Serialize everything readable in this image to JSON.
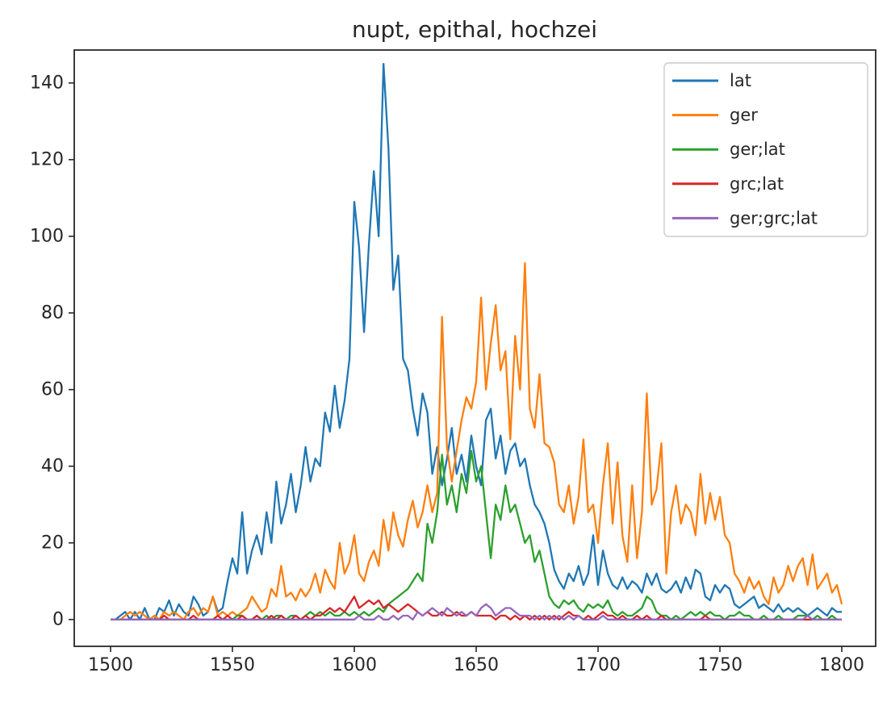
{
  "chart_data": {
    "type": "line",
    "title": "nupt, epithal, hochzei",
    "xlabel": "",
    "ylabel": "",
    "x_start": 1500,
    "x_step": 2,
    "xlim": [
      1485.1,
      1813.9
    ],
    "ylim": [
      -7,
      148.6
    ],
    "x_ticks": [
      1500,
      1550,
      1600,
      1650,
      1700,
      1750,
      1800
    ],
    "y_ticks": [
      0,
      20,
      40,
      60,
      80,
      100,
      120,
      140
    ],
    "grid": false,
    "legend_position": "upper right",
    "axis_color": "#262626",
    "legend_border_color": "#cccccc",
    "series": [
      {
        "name": "lat",
        "color": "#1f77b4",
        "values": [
          0,
          0,
          1,
          2,
          0,
          2,
          0,
          3,
          0,
          0,
          3,
          2,
          5,
          1,
          4,
          2,
          1,
          6,
          4,
          1,
          2,
          6,
          2,
          3,
          10,
          16,
          12,
          28,
          12,
          18,
          22,
          17,
          28,
          20,
          36,
          25,
          30,
          38,
          28,
          35,
          45,
          36,
          42,
          40,
          54,
          49,
          61,
          50,
          57,
          68,
          109,
          97,
          75,
          98,
          117,
          100,
          145,
          123,
          86,
          95,
          68,
          65,
          55,
          48,
          59,
          54,
          38,
          45,
          35,
          42,
          50,
          38,
          43,
          36,
          48,
          40,
          35,
          52,
          55,
          42,
          48,
          38,
          44,
          46,
          40,
          42,
          35,
          30,
          28,
          25,
          20,
          13,
          10,
          8,
          12,
          10,
          14,
          9,
          12,
          22,
          9,
          18,
          12,
          9,
          8,
          11,
          8,
          10,
          9,
          7,
          12,
          9,
          12,
          8,
          7,
          8,
          10,
          7,
          11,
          8,
          13,
          12,
          6,
          5,
          9,
          7,
          9,
          8,
          4,
          3,
          4,
          5,
          6,
          3,
          4,
          3,
          2,
          4,
          2,
          3,
          2,
          3,
          2,
          1,
          2,
          3,
          2,
          1,
          3,
          2,
          2
        ]
      },
      {
        "name": "ger",
        "color": "#ff7f0e",
        "values": [
          0,
          0,
          0,
          1,
          2,
          1,
          2,
          1,
          0,
          1,
          0,
          2,
          1,
          2,
          1,
          0,
          2,
          3,
          1,
          3,
          2,
          6,
          1,
          2,
          1,
          2,
          1,
          2,
          3,
          6,
          4,
          2,
          3,
          8,
          6,
          14,
          6,
          7,
          5,
          8,
          6,
          8,
          12,
          7,
          13,
          10,
          8,
          20,
          12,
          15,
          22,
          12,
          10,
          15,
          18,
          14,
          26,
          18,
          28,
          22,
          19,
          26,
          31,
          24,
          28,
          35,
          28,
          33,
          79,
          45,
          36,
          44,
          52,
          58,
          55,
          62,
          84,
          60,
          72,
          82,
          65,
          70,
          47,
          74,
          60,
          93,
          55,
          50,
          64,
          46,
          45,
          41,
          30,
          28,
          35,
          25,
          32,
          47,
          28,
          30,
          20,
          35,
          46,
          25,
          41,
          22,
          15,
          35,
          16,
          28,
          59,
          30,
          34,
          46,
          12,
          28,
          35,
          25,
          30,
          28,
          22,
          38,
          25,
          33,
          26,
          32,
          22,
          20,
          12,
          10,
          7,
          11,
          8,
          10,
          6,
          4,
          11,
          7,
          9,
          14,
          10,
          14,
          16,
          9,
          17,
          8,
          10,
          12,
          7,
          9,
          4
        ]
      },
      {
        "name": "ger;lat",
        "color": "#2ca02c",
        "values": [
          0,
          0,
          0,
          0,
          0,
          0,
          0,
          0,
          0,
          0,
          0,
          0,
          0,
          0,
          0,
          0,
          0,
          0,
          0,
          0,
          0,
          0,
          0,
          0,
          0,
          0,
          1,
          1,
          0,
          0,
          1,
          0,
          1,
          0,
          1,
          1,
          0,
          1,
          1,
          0,
          1,
          2,
          1,
          2,
          1,
          2,
          1,
          1,
          2,
          1,
          2,
          1,
          2,
          1,
          2,
          3,
          2,
          4,
          5,
          6,
          7,
          8,
          10,
          12,
          10,
          25,
          20,
          28,
          43,
          30,
          35,
          28,
          38,
          33,
          44,
          36,
          40,
          28,
          16,
          30,
          26,
          35,
          28,
          30,
          25,
          20,
          22,
          15,
          18,
          12,
          6,
          4,
          3,
          5,
          4,
          5,
          3,
          2,
          4,
          3,
          4,
          3,
          5,
          2,
          1,
          2,
          1,
          1,
          2,
          3,
          6,
          5,
          2,
          1,
          1,
          0,
          1,
          0,
          1,
          2,
          1,
          2,
          1,
          2,
          1,
          1,
          0,
          1,
          1,
          2,
          1,
          1,
          0,
          0,
          1,
          0,
          0,
          1,
          0,
          0,
          0,
          1,
          1,
          1,
          0,
          1,
          0,
          0,
          1,
          0,
          0
        ]
      },
      {
        "name": "grc;lat",
        "color": "#d62728",
        "values": [
          0,
          0,
          0,
          0,
          0,
          0,
          0,
          0,
          0,
          0,
          0,
          1,
          0,
          0,
          0,
          0,
          0,
          1,
          0,
          0,
          0,
          0,
          1,
          0,
          1,
          0,
          0,
          1,
          0,
          0,
          1,
          0,
          0,
          1,
          0,
          1,
          0,
          0,
          1,
          0,
          1,
          0,
          1,
          1,
          2,
          3,
          2,
          3,
          2,
          4,
          6,
          3,
          4,
          5,
          4,
          5,
          3,
          4,
          3,
          2,
          3,
          4,
          3,
          2,
          1,
          2,
          1,
          1,
          2,
          1,
          1,
          2,
          1,
          1,
          2,
          1,
          1,
          1,
          1,
          0,
          1,
          1,
          0,
          1,
          0,
          1,
          0,
          1,
          0,
          1,
          0,
          1,
          0,
          1,
          2,
          1,
          1,
          0,
          1,
          0,
          1,
          2,
          1,
          1,
          0,
          1,
          0,
          0,
          1,
          0,
          1,
          0,
          0,
          1,
          0,
          0,
          0,
          0,
          0,
          0,
          0,
          0,
          1,
          0,
          0,
          0,
          0,
          0,
          0,
          0,
          0,
          0,
          0,
          0,
          0,
          0,
          0,
          0,
          0,
          0,
          0,
          0,
          0,
          0,
          0,
          0,
          0,
          0,
          0,
          0,
          0
        ]
      },
      {
        "name": "ger;grc;lat",
        "color": "#9467bd",
        "values": [
          0,
          0,
          0,
          0,
          0,
          0,
          0,
          0,
          0,
          0,
          0,
          0,
          0,
          0,
          0,
          0,
          0,
          0,
          0,
          0,
          0,
          0,
          0,
          0,
          0,
          0,
          0,
          0,
          0,
          0,
          0,
          0,
          0,
          0,
          0,
          0,
          0,
          0,
          0,
          0,
          0,
          0,
          0,
          0,
          0,
          0,
          0,
          0,
          0,
          0,
          0,
          1,
          0,
          0,
          0,
          1,
          0,
          0,
          1,
          0,
          1,
          1,
          0,
          2,
          1,
          2,
          3,
          2,
          1,
          3,
          2,
          1,
          2,
          1,
          2,
          1,
          3,
          4,
          3,
          1,
          2,
          3,
          3,
          2,
          1,
          1,
          1,
          0,
          1,
          0,
          1,
          0,
          1,
          0,
          1,
          0,
          1,
          0,
          0,
          0,
          0,
          1,
          0,
          0,
          0,
          0,
          0,
          0,
          0,
          0,
          0,
          0,
          0,
          0,
          0,
          0,
          0,
          0,
          0,
          0,
          0,
          0,
          0,
          0,
          0,
          0,
          0,
          0,
          0,
          0,
          0,
          0,
          0,
          0,
          0,
          0,
          0,
          0,
          0,
          0,
          0,
          0,
          0,
          1,
          0,
          0,
          0,
          0,
          0,
          0,
          0
        ]
      }
    ]
  }
}
